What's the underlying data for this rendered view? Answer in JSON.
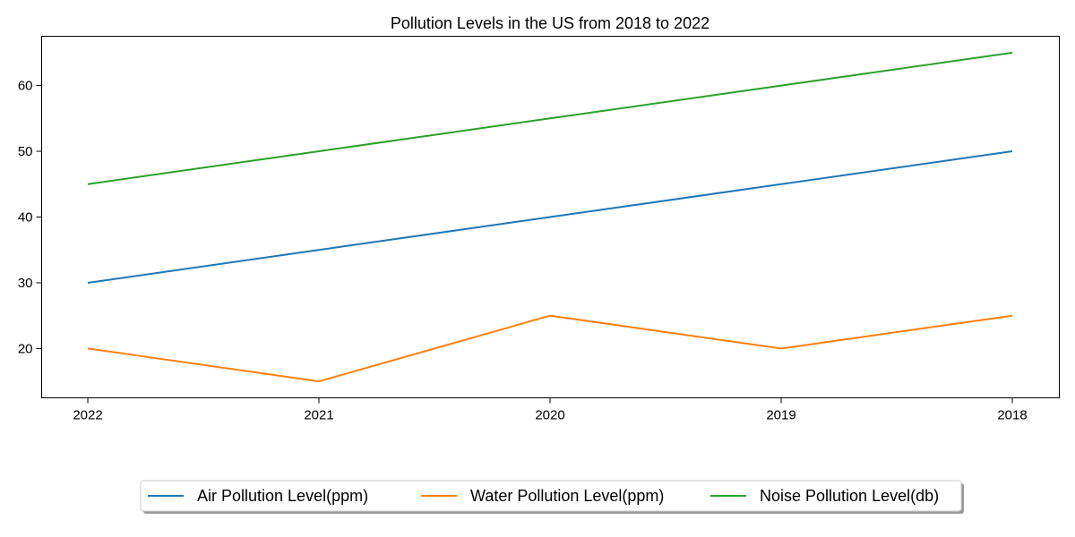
{
  "chart_data": {
    "type": "line",
    "title": "Pollution Levels in the US from 2018 to 2022",
    "xlabel": "",
    "ylabel": "",
    "categories": [
      "2022",
      "2021",
      "2020",
      "2019",
      "2018"
    ],
    "series": [
      {
        "name": "Air Pollution Level(ppm)",
        "color": "#1f77b4",
        "values": [
          30,
          35,
          40,
          45,
          50
        ]
      },
      {
        "name": "Water Pollution Level(ppm)",
        "color": "#ff7f0e",
        "values": [
          20,
          15,
          25,
          20,
          25
        ]
      },
      {
        "name": "Noise Pollution Level(db)",
        "color": "#2ca02c",
        "values": [
          45,
          50,
          55,
          60,
          65
        ]
      }
    ],
    "y_ticks": [
      20,
      30,
      40,
      50,
      60
    ],
    "ylim": [
      12.5,
      67.5
    ],
    "grid": false,
    "legend_position": "bottom-center"
  }
}
